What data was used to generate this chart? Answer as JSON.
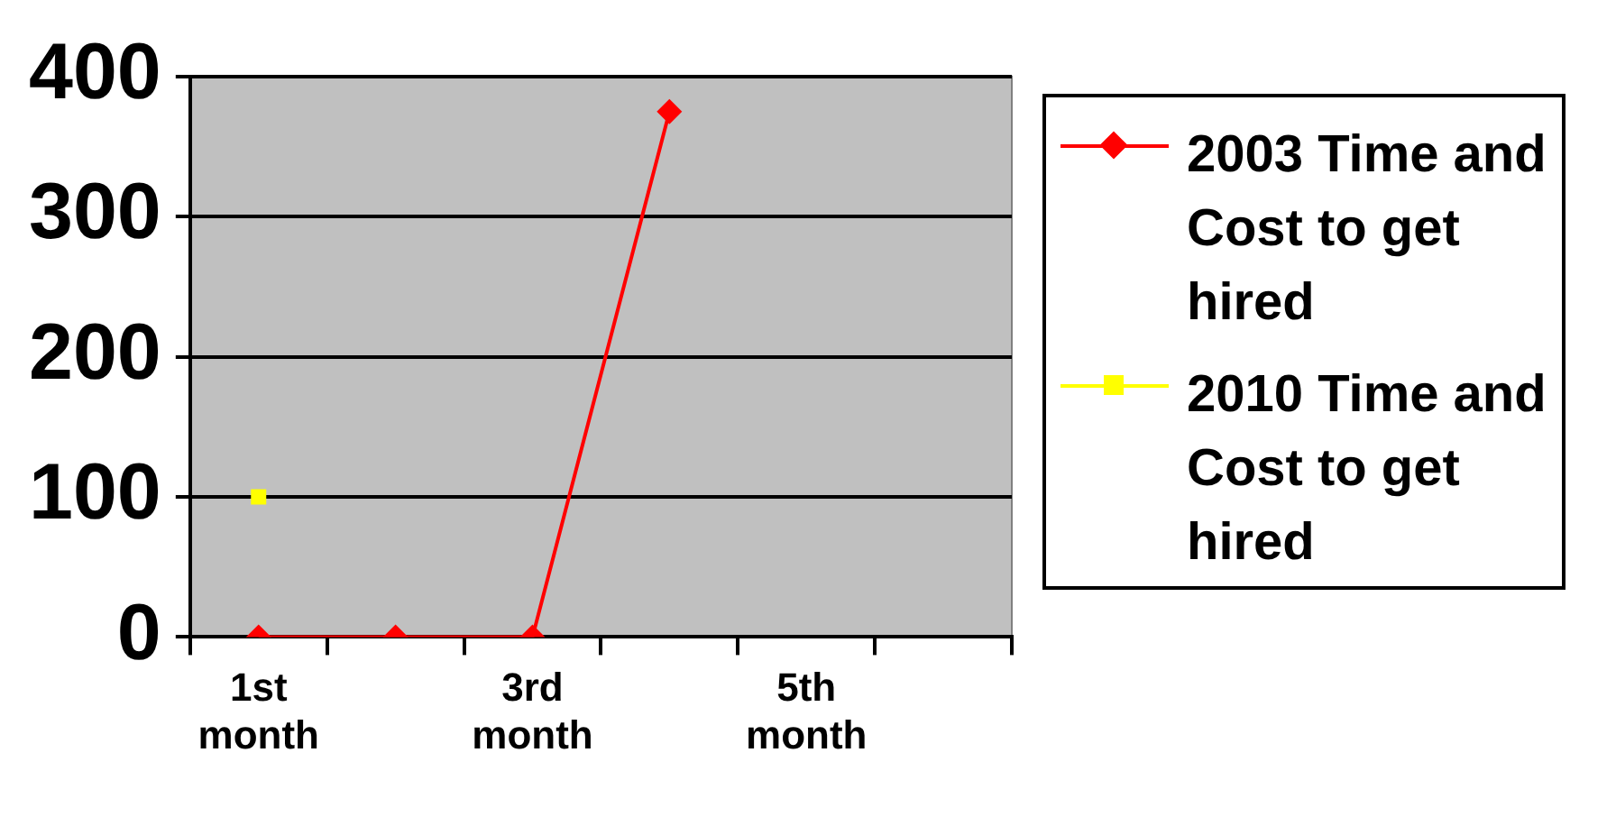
{
  "chart_data": {
    "type": "line",
    "categories": [
      "1st month",
      null,
      "3rd month",
      null,
      "5th month",
      null
    ],
    "series": [
      {
        "name": "2003 Time and Cost to get hired",
        "color": "#ff0000",
        "marker": "diamond",
        "values": [
          0,
          0,
          0,
          375,
          null,
          null
        ]
      },
      {
        "name": "2010 Time and Cost to get hired",
        "color": "#ffff00",
        "marker": "square",
        "values": [
          100,
          null,
          null,
          null,
          null,
          null
        ]
      }
    ],
    "ylim": [
      0,
      400
    ],
    "yticks": [
      0,
      100,
      200,
      300,
      400
    ],
    "grid": "y",
    "legend": "right",
    "line_style": "solid"
  }
}
